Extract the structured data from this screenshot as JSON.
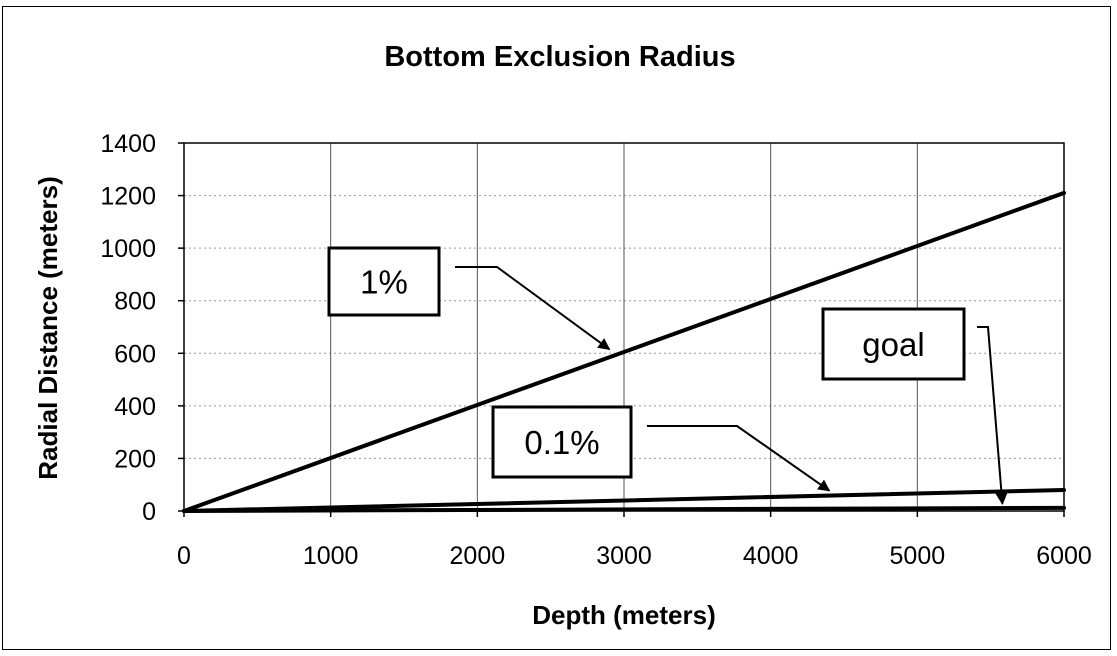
{
  "chart_data": {
    "type": "line",
    "title": "Bottom Exclusion Radius",
    "xlabel": "Depth (meters)",
    "ylabel": "Radial Distance (meters)",
    "xlim": [
      0,
      6000
    ],
    "ylim": [
      0,
      1400
    ],
    "xticks": [
      0,
      1000,
      2000,
      3000,
      4000,
      5000,
      6000
    ],
    "yticks": [
      0,
      200,
      400,
      600,
      800,
      1000,
      1200,
      1400
    ],
    "grid": true,
    "legend": "none",
    "series": [
      {
        "name": "1%",
        "x": [
          0,
          6000
        ],
        "y": [
          0,
          1210
        ]
      },
      {
        "name": "0.1%",
        "x": [
          0,
          6000
        ],
        "y": [
          0,
          80
        ]
      },
      {
        "name": "goal",
        "x": [
          0,
          6000
        ],
        "y": [
          0,
          12
        ]
      }
    ],
    "annotations": [
      {
        "text": "1%",
        "points_to": {
          "x": 2900,
          "y": 600
        }
      },
      {
        "text": "0.1%",
        "points_to": {
          "x": 4400,
          "y": 62
        }
      },
      {
        "text": "goal",
        "points_to": {
          "x": 5580,
          "y": 12
        }
      }
    ],
    "colors": {
      "line": "#000000",
      "grid": "#999999"
    }
  }
}
